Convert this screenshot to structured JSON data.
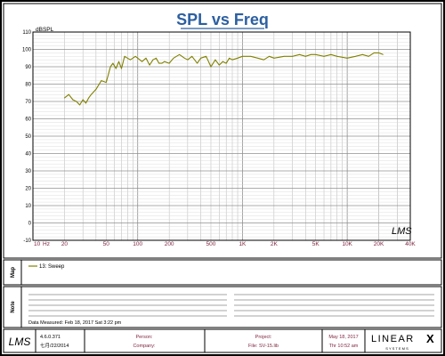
{
  "chart_data": {
    "type": "line",
    "title": "SPL vs Freq",
    "ylabel": "dBSPL",
    "xlabel_unit": "Hz",
    "x_scale": "log",
    "xlim": [
      10,
      40000
    ],
    "ylim": [
      -10,
      110
    ],
    "y_ticks": [
      -10,
      0,
      10,
      20,
      30,
      40,
      50,
      60,
      70,
      80,
      90,
      100,
      110
    ],
    "x_ticks": [
      {
        "value": 10,
        "label": "10"
      },
      {
        "value": 20,
        "label": "20"
      },
      {
        "value": 50,
        "label": "50"
      },
      {
        "value": 100,
        "label": "100"
      },
      {
        "value": 200,
        "label": "200"
      },
      {
        "value": 500,
        "label": "500"
      },
      {
        "value": 1000,
        "label": "1K"
      },
      {
        "value": 2000,
        "label": "2K"
      },
      {
        "value": 5000,
        "label": "5K"
      },
      {
        "value": 10000,
        "label": "10K"
      },
      {
        "value": 20000,
        "label": "20K"
      },
      {
        "value": 40000,
        "label": "40K"
      }
    ],
    "grid": true,
    "series": [
      {
        "name": "13: Sweep",
        "color": "#808000",
        "x": [
          20,
          22,
          24,
          26,
          28,
          30,
          32,
          34,
          36,
          40,
          45,
          50,
          55,
          58,
          62,
          66,
          70,
          75,
          80,
          85,
          90,
          95,
          100,
          110,
          120,
          130,
          140,
          150,
          160,
          170,
          180,
          200,
          220,
          250,
          280,
          300,
          330,
          370,
          400,
          450,
          500,
          550,
          600,
          650,
          700,
          750,
          800,
          900,
          1000,
          1200,
          1400,
          1600,
          1800,
          2000,
          2500,
          3000,
          3500,
          4000,
          4500,
          5000,
          6000,
          7000,
          8000,
          10000,
          12000,
          14000,
          16000,
          18000,
          20000,
          22000
        ],
        "y": [
          72,
          74,
          71,
          70,
          68,
          71,
          69,
          72,
          74,
          77,
          82,
          81,
          90,
          92,
          89,
          93,
          89,
          96,
          95,
          94,
          95,
          96,
          95,
          93,
          95,
          91,
          94,
          95,
          92,
          92,
          93,
          92,
          95,
          97,
          95,
          94,
          96,
          92,
          95,
          96,
          90,
          94,
          91,
          93,
          92,
          95,
          94,
          95,
          96,
          96,
          95,
          94,
          96,
          95,
          96,
          96,
          97,
          96,
          97,
          97,
          96,
          97,
          96,
          95,
          96,
          97,
          96,
          98,
          98,
          97
        ]
      }
    ]
  },
  "map_panel": {
    "side_label": "Map",
    "legend_entry": "13: Sweep"
  },
  "note_panel": {
    "side_label": "Note",
    "data_measured": "Data Measured: Feb 18, 2017   Sat  3:22 pm"
  },
  "footer": {
    "version": "4.6.0.371",
    "version_date": "七月/22/2014",
    "person_label": "Person:",
    "company_label": "Company:",
    "project_label": "Project:",
    "file_label": "File:  SV-15.lib",
    "date_line1": "May 18, 2017",
    "date_line2": "Thr  10:52 am",
    "brand_main": "LINEAR",
    "brand_x": "X",
    "brand_sub": "S Y S T E M S"
  },
  "logo_text": "LMS",
  "colors": {
    "title": "#2c5fa0",
    "axis_label": "#7a1f3a",
    "grid": "#b4b4b4",
    "curve": "#808000",
    "border": "#000000"
  }
}
